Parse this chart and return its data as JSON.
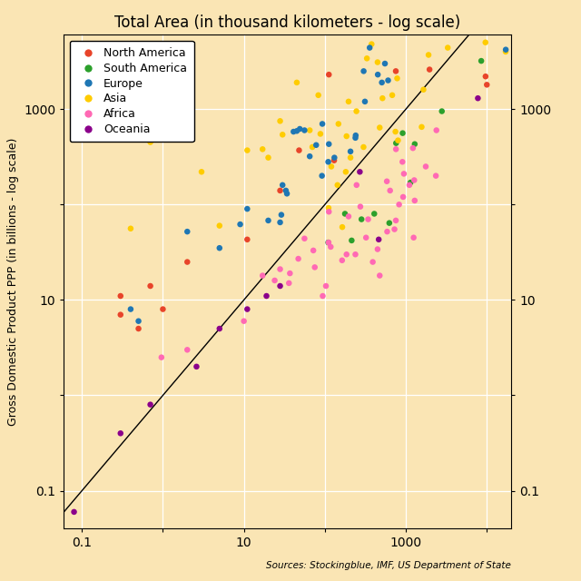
{
  "title": "Total Area (in thousand kilometers - log scale)",
  "ylabel": "Gross Domestic Product PPP (in billions - log scale)",
  "source_text": "Sources: Stockingblue, IMF, US Department of State",
  "background_color": "#FAE5B4",
  "xlim": [
    0.06,
    20000
  ],
  "ylim": [
    0.04,
    6000
  ],
  "legend_labels": [
    "North America",
    "South America",
    "Europe",
    "Asia",
    "Africa",
    "Oceania"
  ],
  "legend_colors": [
    "#E8442A",
    "#2CA02C",
    "#1F77B4",
    "#FFCC00",
    "#FF69B4",
    "#8B008B"
  ],
  "data": [
    {
      "area": 9984,
      "gdp": 1800,
      "continent": "North America"
    },
    {
      "area": 9629,
      "gdp": 2200,
      "continent": "North America"
    },
    {
      "area": 1958,
      "gdp": 2600,
      "continent": "North America"
    },
    {
      "area": 130,
      "gdp": 290,
      "continent": "North America"
    },
    {
      "area": 751,
      "gdp": 2500,
      "continent": "North America"
    },
    {
      "area": 112,
      "gdp": 2300,
      "continent": "North America"
    },
    {
      "area": 48,
      "gdp": 370,
      "continent": "North America"
    },
    {
      "area": 28,
      "gdp": 140,
      "continent": "North America"
    },
    {
      "area": 11,
      "gdp": 43,
      "continent": "North America"
    },
    {
      "area": 1,
      "gdp": 8,
      "continent": "North America"
    },
    {
      "area": 0.3,
      "gdp": 7,
      "continent": "North America"
    },
    {
      "area": 2,
      "gdp": 25,
      "continent": "North America"
    },
    {
      "area": 0.5,
      "gdp": 5,
      "continent": "North America"
    },
    {
      "area": 0.3,
      "gdp": 11,
      "continent": "North America"
    },
    {
      "area": 0.7,
      "gdp": 14,
      "continent": "North America"
    },
    {
      "area": 8515,
      "gdp": 3200,
      "continent": "South America"
    },
    {
      "area": 2780,
      "gdp": 950,
      "continent": "South America"
    },
    {
      "area": 1285,
      "gdp": 430,
      "continent": "South America"
    },
    {
      "area": 912,
      "gdp": 560,
      "continent": "South America"
    },
    {
      "area": 756,
      "gdp": 440,
      "continent": "South America"
    },
    {
      "area": 1141,
      "gdp": 170,
      "continent": "South America"
    },
    {
      "area": 624,
      "gdp": 64,
      "continent": "South America"
    },
    {
      "area": 407,
      "gdp": 80,
      "continent": "South America"
    },
    {
      "area": 283,
      "gdp": 70,
      "continent": "South America"
    },
    {
      "area": 214,
      "gdp": 42,
      "continent": "South America"
    },
    {
      "area": 177,
      "gdp": 80,
      "continent": "South America"
    },
    {
      "area": 110,
      "gdp": 40,
      "continent": "South America"
    },
    {
      "area": 17040,
      "gdp": 4000,
      "continent": "Asia"
    },
    {
      "area": 9596,
      "gdp": 5000,
      "continent": "Asia"
    },
    {
      "area": 3287,
      "gdp": 4400,
      "continent": "Asia"
    },
    {
      "area": 1904,
      "gdp": 3700,
      "continent": "Asia"
    },
    {
      "area": 1648,
      "gdp": 1600,
      "continent": "Asia"
    },
    {
      "area": 1565,
      "gdp": 650,
      "continent": "Asia"
    },
    {
      "area": 799,
      "gdp": 470,
      "continent": "Asia"
    },
    {
      "area": 780,
      "gdp": 2100,
      "continent": "Asia"
    },
    {
      "area": 743,
      "gdp": 580,
      "continent": "Asia"
    },
    {
      "area": 678,
      "gdp": 1400,
      "continent": "Asia"
    },
    {
      "area": 514,
      "gdp": 1300,
      "continent": "Asia"
    },
    {
      "area": 475,
      "gdp": 640,
      "continent": "Asia"
    },
    {
      "area": 447,
      "gdp": 3100,
      "continent": "Asia"
    },
    {
      "area": 377,
      "gdp": 4800,
      "continent": "Asia"
    },
    {
      "area": 330,
      "gdp": 3400,
      "continent": "Asia"
    },
    {
      "area": 300,
      "gdp": 400,
      "continent": "Asia"
    },
    {
      "area": 245,
      "gdp": 950,
      "continent": "Asia"
    },
    {
      "area": 207,
      "gdp": 310,
      "continent": "Asia"
    },
    {
      "area": 196,
      "gdp": 1200,
      "continent": "Asia"
    },
    {
      "area": 185,
      "gdp": 520,
      "continent": "Asia"
    },
    {
      "area": 181,
      "gdp": 220,
      "continent": "Asia"
    },
    {
      "area": 164,
      "gdp": 58,
      "continent": "Asia"
    },
    {
      "area": 147,
      "gdp": 700,
      "continent": "Asia"
    },
    {
      "area": 143,
      "gdp": 160,
      "continent": "Asia"
    },
    {
      "area": 120,
      "gdp": 250,
      "continent": "Asia"
    },
    {
      "area": 111,
      "gdp": 92,
      "continent": "Asia"
    },
    {
      "area": 88,
      "gdp": 550,
      "continent": "Asia"
    },
    {
      "area": 83,
      "gdp": 1400,
      "continent": "Asia"
    },
    {
      "area": 70,
      "gdp": 400,
      "continent": "Asia"
    },
    {
      "area": 65,
      "gdp": 600,
      "continent": "Asia"
    },
    {
      "area": 45,
      "gdp": 1900,
      "continent": "Asia"
    },
    {
      "area": 30,
      "gdp": 540,
      "continent": "Asia"
    },
    {
      "area": 28,
      "gdp": 750,
      "continent": "Asia"
    },
    {
      "area": 20,
      "gdp": 310,
      "continent": "Asia"
    },
    {
      "area": 17,
      "gdp": 380,
      "continent": "Asia"
    },
    {
      "area": 11,
      "gdp": 370,
      "continent": "Asia"
    },
    {
      "area": 5,
      "gdp": 60,
      "continent": "Asia"
    },
    {
      "area": 3,
      "gdp": 220,
      "continent": "Asia"
    },
    {
      "area": 0.7,
      "gdp": 450,
      "continent": "Asia"
    },
    {
      "area": 0.4,
      "gdp": 56,
      "continent": "Asia"
    },
    {
      "area": 0.3,
      "gdp": 560,
      "continent": "Asia"
    },
    {
      "area": 17098,
      "gdp": 4200,
      "continent": "Europe"
    },
    {
      "area": 603,
      "gdp": 2000,
      "continent": "Europe"
    },
    {
      "area": 551,
      "gdp": 3000,
      "continent": "Europe"
    },
    {
      "area": 505,
      "gdp": 1900,
      "continent": "Europe"
    },
    {
      "area": 450,
      "gdp": 2300,
      "continent": "Europe"
    },
    {
      "area": 357,
      "gdp": 4400,
      "continent": "Europe"
    },
    {
      "area": 312,
      "gdp": 1200,
      "continent": "Europe"
    },
    {
      "area": 301,
      "gdp": 2500,
      "continent": "Europe"
    },
    {
      "area": 240,
      "gdp": 530,
      "continent": "Europe"
    },
    {
      "area": 238,
      "gdp": 500,
      "continent": "Europe"
    },
    {
      "area": 207,
      "gdp": 360,
      "continent": "Europe"
    },
    {
      "area": 131,
      "gdp": 310,
      "continent": "Europe"
    },
    {
      "area": 112,
      "gdp": 430,
      "continent": "Europe"
    },
    {
      "area": 110,
      "gdp": 280,
      "continent": "Europe"
    },
    {
      "area": 93,
      "gdp": 700,
      "continent": "Europe"
    },
    {
      "area": 92,
      "gdp": 200,
      "continent": "Europe"
    },
    {
      "area": 78,
      "gdp": 420,
      "continent": "Europe"
    },
    {
      "area": 65,
      "gdp": 320,
      "continent": "Europe"
    },
    {
      "area": 56,
      "gdp": 600,
      "continent": "Europe"
    },
    {
      "area": 49,
      "gdp": 620,
      "continent": "Europe"
    },
    {
      "area": 45,
      "gdp": 590,
      "continent": "Europe"
    },
    {
      "area": 41,
      "gdp": 580,
      "continent": "Europe"
    },
    {
      "area": 34,
      "gdp": 130,
      "continent": "Europe"
    },
    {
      "area": 33,
      "gdp": 140,
      "continent": "Europe"
    },
    {
      "area": 30,
      "gdp": 160,
      "continent": "Europe"
    },
    {
      "area": 29,
      "gdp": 78,
      "continent": "Europe"
    },
    {
      "area": 28,
      "gdp": 65,
      "continent": "Europe"
    },
    {
      "area": 20,
      "gdp": 68,
      "continent": "Europe"
    },
    {
      "area": 11,
      "gdp": 90,
      "continent": "Europe"
    },
    {
      "area": 9,
      "gdp": 62,
      "continent": "Europe"
    },
    {
      "area": 5,
      "gdp": 35,
      "continent": "Europe"
    },
    {
      "area": 2,
      "gdp": 52,
      "continent": "Europe"
    },
    {
      "area": 0.5,
      "gdp": 6,
      "continent": "Europe"
    },
    {
      "area": 0.4,
      "gdp": 8,
      "continent": "Europe"
    },
    {
      "area": 2381,
      "gdp": 600,
      "continent": "Africa"
    },
    {
      "area": 2345,
      "gdp": 200,
      "continent": "Africa"
    },
    {
      "area": 1759,
      "gdp": 250,
      "continent": "Africa"
    },
    {
      "area": 1284,
      "gdp": 110,
      "continent": "Africa"
    },
    {
      "area": 1267,
      "gdp": 180,
      "continent": "Africa"
    },
    {
      "area": 1246,
      "gdp": 45,
      "continent": "Africa"
    },
    {
      "area": 1221,
      "gdp": 390,
      "continent": "Africa"
    },
    {
      "area": 1104,
      "gdp": 160,
      "continent": "Africa"
    },
    {
      "area": 945,
      "gdp": 210,
      "continent": "Africa"
    },
    {
      "area": 924,
      "gdp": 120,
      "continent": "Africa"
    },
    {
      "area": 906,
      "gdp": 280,
      "continent": "Africa"
    },
    {
      "area": 824,
      "gdp": 100,
      "continent": "Africa"
    },
    {
      "area": 754,
      "gdp": 380,
      "continent": "Africa"
    },
    {
      "area": 752,
      "gdp": 68,
      "continent": "Africa"
    },
    {
      "area": 723,
      "gdp": 55,
      "continent": "Africa"
    },
    {
      "area": 638,
      "gdp": 140,
      "continent": "Africa"
    },
    {
      "area": 587,
      "gdp": 52,
      "continent": "Africa"
    },
    {
      "area": 582,
      "gdp": 175,
      "continent": "Africa"
    },
    {
      "area": 475,
      "gdp": 18,
      "continent": "Africa"
    },
    {
      "area": 447,
      "gdp": 34,
      "continent": "Africa"
    },
    {
      "area": 390,
      "gdp": 25,
      "continent": "Africa"
    },
    {
      "area": 342,
      "gdp": 70,
      "continent": "Africa"
    },
    {
      "area": 322,
      "gdp": 45,
      "continent": "Africa"
    },
    {
      "area": 274,
      "gdp": 95,
      "continent": "Africa"
    },
    {
      "area": 246,
      "gdp": 160,
      "continent": "Africa"
    },
    {
      "area": 238,
      "gdp": 30,
      "continent": "Africa"
    },
    {
      "area": 196,
      "gdp": 75,
      "continent": "Africa"
    },
    {
      "area": 185,
      "gdp": 30,
      "continent": "Africa"
    },
    {
      "area": 163,
      "gdp": 26,
      "continent": "Africa"
    },
    {
      "area": 118,
      "gdp": 36,
      "continent": "Africa"
    },
    {
      "area": 112,
      "gdp": 84,
      "continent": "Africa"
    },
    {
      "area": 111,
      "gdp": 40,
      "continent": "Africa"
    },
    {
      "area": 103,
      "gdp": 14,
      "continent": "Africa"
    },
    {
      "area": 94,
      "gdp": 11,
      "continent": "Africa"
    },
    {
      "area": 75,
      "gdp": 22,
      "continent": "Africa"
    },
    {
      "area": 72,
      "gdp": 33,
      "continent": "Africa"
    },
    {
      "area": 56,
      "gdp": 44,
      "continent": "Africa"
    },
    {
      "area": 47,
      "gdp": 27,
      "continent": "Africa"
    },
    {
      "area": 37,
      "gdp": 19,
      "continent": "Africa"
    },
    {
      "area": 36,
      "gdp": 15,
      "continent": "Africa"
    },
    {
      "area": 28,
      "gdp": 21,
      "continent": "Africa"
    },
    {
      "area": 24,
      "gdp": 16,
      "continent": "Africa"
    },
    {
      "area": 17,
      "gdp": 18,
      "continent": "Africa"
    },
    {
      "area": 10,
      "gdp": 6,
      "continent": "Africa"
    },
    {
      "area": 2,
      "gdp": 3,
      "continent": "Africa"
    },
    {
      "area": 0.96,
      "gdp": 2.5,
      "continent": "Africa"
    },
    {
      "area": 7741,
      "gdp": 1300,
      "continent": "Oceania"
    },
    {
      "area": 270,
      "gdp": 220,
      "continent": "Oceania"
    },
    {
      "area": 462,
      "gdp": 43,
      "continent": "Oceania"
    },
    {
      "area": 28,
      "gdp": 14,
      "continent": "Oceania"
    },
    {
      "area": 19,
      "gdp": 11,
      "continent": "Oceania"
    },
    {
      "area": 11,
      "gdp": 8,
      "continent": "Oceania"
    },
    {
      "area": 5,
      "gdp": 5,
      "continent": "Oceania"
    },
    {
      "area": 2.6,
      "gdp": 2,
      "continent": "Oceania"
    },
    {
      "area": 0.7,
      "gdp": 0.8,
      "continent": "Oceania"
    },
    {
      "area": 0.3,
      "gdp": 0.4,
      "continent": "Oceania"
    },
    {
      "area": 0.08,
      "gdp": 0.06,
      "continent": "Oceania"
    }
  ]
}
